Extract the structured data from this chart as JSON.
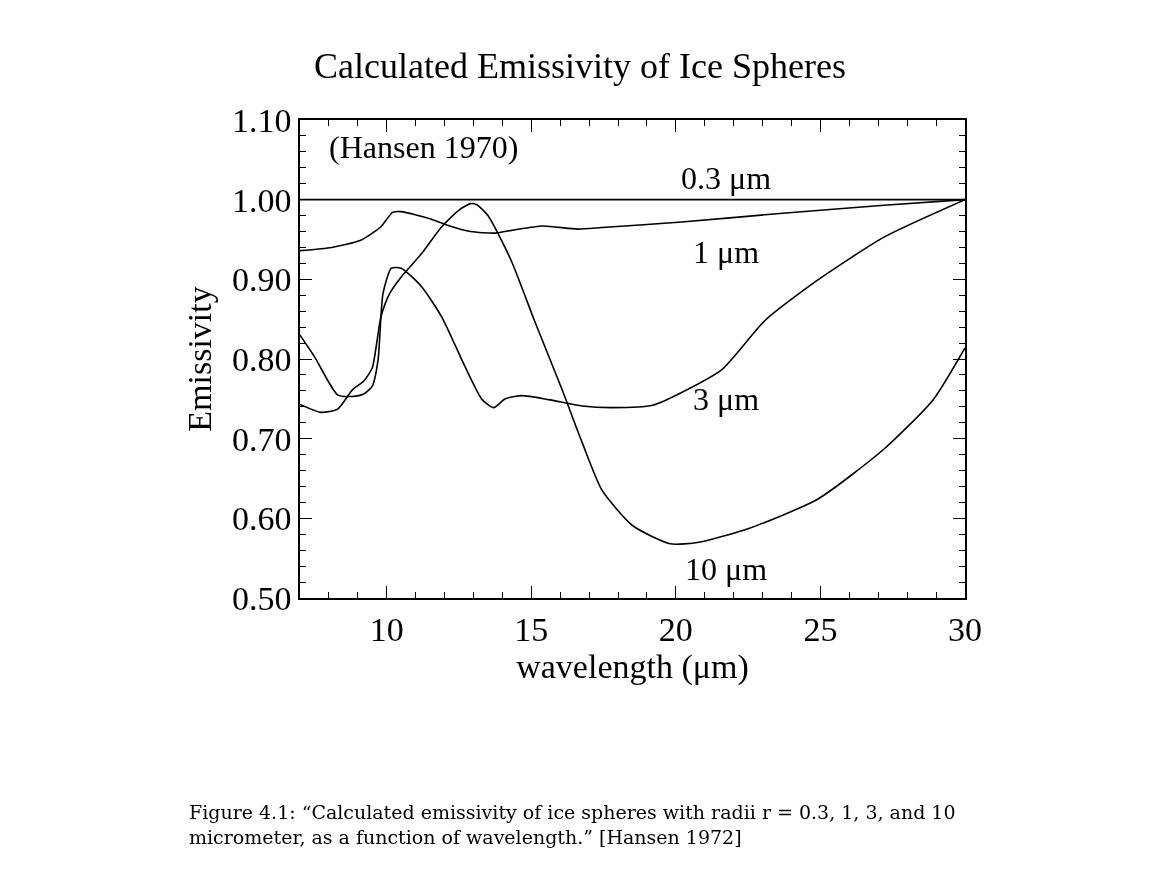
{
  "chart_data": {
    "type": "line",
    "title": "Calculated Emissivity of Ice Spheres",
    "xlabel": "wavelength (μm)",
    "ylabel": "Emissivity",
    "xlim": [
      7,
      30
    ],
    "xticks": [
      10,
      15,
      20,
      25,
      30
    ],
    "ylim": [
      0.5,
      1.1
    ],
    "yticks": [
      {
        "value": 0.5,
        "label": "0.50"
      },
      {
        "value": 0.6,
        "label": "0.60"
      },
      {
        "value": 0.7,
        "label": "0.70"
      },
      {
        "value": 0.8,
        "label": "0.80"
      },
      {
        "value": 0.9,
        "label": "0.90"
      },
      {
        "value": 1.0,
        "label": "1.00"
      },
      {
        "value": 1.1,
        "label": "1.10"
      }
    ],
    "legend": false,
    "marker": "none",
    "line_style": "solid",
    "series": [
      {
        "color": "#000000",
        "x": [
          7,
          30
        ],
        "values": [
          1.0,
          1.0
        ]
      },
      {
        "color": "#000000",
        "x": [
          7,
          8.1,
          9.1,
          9.8,
          10.2,
          10.5,
          11.5,
          12.1,
          12.9,
          13.75,
          14.4,
          15.4,
          16.6,
          17.45,
          20.2,
          23.7,
          27.2,
          30
        ],
        "values": [
          0.936,
          0.94,
          0.949,
          0.966,
          0.984,
          0.985,
          0.976,
          0.968,
          0.96,
          0.958,
          0.962,
          0.967,
          0.963,
          0.965,
          0.972,
          0.983,
          0.993,
          1.0
        ]
      },
      {
        "color": "#000000",
        "x": [
          7,
          7.5,
          8.3,
          8.8,
          9.2,
          9.5,
          9.7,
          9.87,
          10.16,
          10.5,
          11.2,
          11.9,
          12.7,
          13.3,
          13.7,
          14.1,
          14.67,
          15.6,
          16.76,
          17.8,
          19.2,
          20.2,
          21.6,
          23.1,
          24.9,
          27.2,
          30
        ],
        "values": [
          0.83,
          0.803,
          0.755,
          0.753,
          0.756,
          0.766,
          0.799,
          0.882,
          0.914,
          0.914,
          0.891,
          0.853,
          0.791,
          0.749,
          0.739,
          0.75,
          0.754,
          0.749,
          0.741,
          0.739,
          0.742,
          0.758,
          0.787,
          0.849,
          0.899,
          0.953,
          1.0
        ]
      },
      {
        "color": "#000000",
        "x": [
          7,
          7.73,
          8.3,
          8.83,
          9.2,
          9.5,
          9.8,
          10.1,
          10.5,
          11.2,
          11.9,
          12.5,
          12.9,
          13.1,
          13.5,
          14.3,
          15.1,
          16.06,
          16.76,
          17.45,
          18.5,
          19.8,
          20.8,
          22.5,
          24.9,
          27.2,
          28.9,
          30
        ],
        "values": [
          0.743,
          0.733,
          0.737,
          0.762,
          0.772,
          0.789,
          0.853,
          0.882,
          0.903,
          0.932,
          0.966,
          0.987,
          0.995,
          0.994,
          0.98,
          0.924,
          0.849,
          0.762,
          0.695,
          0.635,
          0.591,
          0.568,
          0.57,
          0.587,
          0.624,
          0.687,
          0.749,
          0.814
        ]
      }
    ],
    "annotations": [
      "(Hansen 1970)",
      "0.3 μm",
      "1 μm",
      "3 μm",
      "10 μm",
      "Figure 4.1: “Calculated emissivity of ice spheres with radii r = 0.3, 1, 3, and 10 micrometer, as a function of wavelength.” [Hansen 1972]"
    ]
  }
}
